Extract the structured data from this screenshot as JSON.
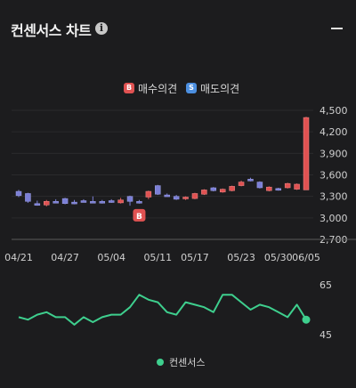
{
  "header": {
    "title": "컨센서스 차트",
    "info_icon": "info-icon",
    "collapse_icon": "minus-icon"
  },
  "legend": {
    "buy_badge": "B",
    "buy_label": "매수의견",
    "sell_badge": "S",
    "sell_label": "매도의견"
  },
  "colors": {
    "background": "#1c1c1e",
    "up": "#e05252",
    "down": "#7b7fd6",
    "consensus": "#3ecf8e",
    "buy": "#e05252",
    "sell": "#4c8fe0"
  },
  "chart_data": [
    {
      "type": "candlestick",
      "y_ticks": [
        "4,500",
        "4,200",
        "3,900",
        "3,600",
        "3,300",
        "3,000",
        "2,700"
      ],
      "x_ticks": [
        "04/21",
        "04/27",
        "05/04",
        "05/11",
        "05/17",
        "05/23",
        "05/30",
        "06/05"
      ],
      "ylim": [
        2700,
        4500
      ],
      "candles": [
        {
          "o": 3370,
          "c": 3310,
          "h": 3390,
          "l": 3290
        },
        {
          "o": 3340,
          "c": 3230,
          "h": 3350,
          "l": 3210
        },
        {
          "o": 3200,
          "c": 3190,
          "h": 3240,
          "l": 3170
        },
        {
          "o": 3180,
          "c": 3230,
          "h": 3250,
          "l": 3160
        },
        {
          "o": 3230,
          "c": 3220,
          "h": 3260,
          "l": 3210
        },
        {
          "o": 3270,
          "c": 3200,
          "h": 3280,
          "l": 3190
        },
        {
          "o": 3220,
          "c": 3200,
          "h": 3250,
          "l": 3190
        },
        {
          "o": 3240,
          "c": 3230,
          "h": 3260,
          "l": 3220
        },
        {
          "o": 3230,
          "c": 3220,
          "h": 3300,
          "l": 3210
        },
        {
          "o": 3230,
          "c": 3210,
          "h": 3250,
          "l": 3200
        },
        {
          "o": 3240,
          "c": 3220,
          "h": 3260,
          "l": 3210
        },
        {
          "o": 3210,
          "c": 3250,
          "h": 3280,
          "l": 3200
        },
        {
          "o": 3300,
          "c": 3230,
          "h": 3310,
          "l": 3170
        },
        {
          "o": 3230,
          "c": 3220,
          "h": 3250,
          "l": 3200
        },
        {
          "o": 3290,
          "c": 3370,
          "h": 3380,
          "l": 3260
        },
        {
          "o": 3450,
          "c": 3330,
          "h": 3460,
          "l": 3320
        },
        {
          "o": 3320,
          "c": 3310,
          "h": 3340,
          "l": 3300
        },
        {
          "o": 3300,
          "c": 3260,
          "h": 3320,
          "l": 3250
        },
        {
          "o": 3280,
          "c": 3290,
          "h": 3300,
          "l": 3250
        },
        {
          "o": 3270,
          "c": 3340,
          "h": 3350,
          "l": 3260
        },
        {
          "o": 3330,
          "c": 3390,
          "h": 3400,
          "l": 3320
        },
        {
          "o": 3420,
          "c": 3380,
          "h": 3430,
          "l": 3370
        },
        {
          "o": 3360,
          "c": 3400,
          "h": 3410,
          "l": 3350
        },
        {
          "o": 3380,
          "c": 3440,
          "h": 3450,
          "l": 3370
        },
        {
          "o": 3450,
          "c": 3500,
          "h": 3520,
          "l": 3440
        },
        {
          "o": 3540,
          "c": 3530,
          "h": 3560,
          "l": 3510
        },
        {
          "o": 3500,
          "c": 3420,
          "h": 3510,
          "l": 3410
        },
        {
          "o": 3380,
          "c": 3430,
          "h": 3440,
          "l": 3370
        },
        {
          "o": 3410,
          "c": 3390,
          "h": 3420,
          "l": 3380
        },
        {
          "o": 3420,
          "c": 3480,
          "h": 3490,
          "l": 3410
        },
        {
          "o": 3400,
          "c": 3470,
          "h": 3480,
          "l": 3390
        },
        {
          "o": 3390,
          "c": 4400,
          "h": 4410,
          "l": 3390
        }
      ],
      "markers": [
        {
          "label": "B",
          "index": 13,
          "value": 3000
        }
      ]
    },
    {
      "type": "line",
      "y_ticks": [
        "65",
        "45"
      ],
      "ylim": [
        45,
        65
      ],
      "series": [
        {
          "name": "컨센서스",
          "values": [
            52,
            51,
            53,
            54,
            52,
            52,
            49,
            52,
            50,
            52,
            53,
            53,
            56,
            61,
            59,
            58,
            54,
            53,
            58,
            57,
            56,
            54,
            61,
            61,
            58,
            55,
            57,
            56,
            54,
            52,
            57,
            51
          ]
        }
      ]
    }
  ]
}
